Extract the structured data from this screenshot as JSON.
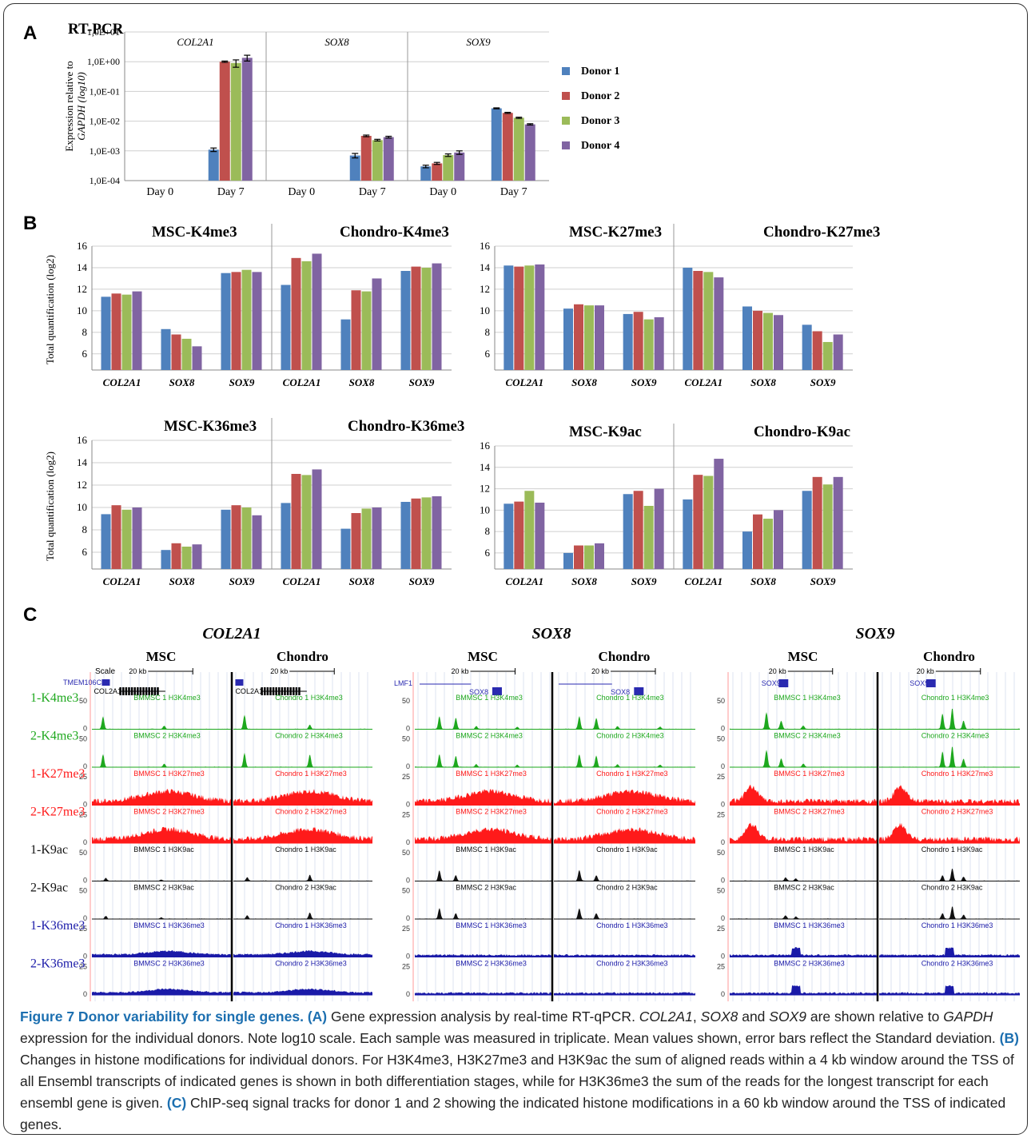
{
  "figure": {
    "panel_labels": [
      "A",
      "B",
      "C"
    ],
    "caption": {
      "title": "Figure 7 Donor variability for single genes.",
      "segments": [
        {
          "t": "(A)",
          "s": "label"
        },
        {
          "t": " Gene expression analysis by real-time RT-qPCR. "
        },
        {
          "t": "COL2A1",
          "s": "i"
        },
        {
          "t": ", "
        },
        {
          "t": "SOX8",
          "s": "i"
        },
        {
          "t": " and "
        },
        {
          "t": "SOX9",
          "s": "i"
        },
        {
          "t": " are shown relative to "
        },
        {
          "t": "GAPDH",
          "s": "i"
        },
        {
          "t": " expression for the individual donors. Note log10 scale. Each sample was measured in triplicate. Mean values shown, error bars reflect the Standard deviation. "
        },
        {
          "t": "(B)",
          "s": "label"
        },
        {
          "t": " Changes in histone modifications for individual donors. For H3K4me3, H3K27me3 and H3K9ac the sum of aligned reads within a 4 kb window around the TSS of all Ensembl transcripts of indicated genes is shown in both differentiation stages, while for H3K36me3 the sum of the reads for the longest transcript for each ensembl gene is given. "
        },
        {
          "t": "(C)",
          "s": "label"
        },
        {
          "t": " ChIP-seq signal tracks for donor 1 and 2 showing the indicated histone modifications in a 60 kb window around the TSS of indicated genes."
        }
      ]
    }
  },
  "colors": {
    "donor1": "#4f81bd",
    "donor2": "#c0504d",
    "donor3": "#9bbb59",
    "donor4": "#8064a2",
    "k4me3": "#1ea81e",
    "k27me3": "#ff1a1a",
    "k9ac": "#111111",
    "k36me3": "#1a1aa8",
    "caption_accent": "#1c6fb0"
  },
  "chart_data": [
    {
      "panel": "A",
      "type": "bar",
      "title": "RT-PCR",
      "ylabel": [
        "Expression relative to",
        "GAPDH (log10)"
      ],
      "y_scale": "log10",
      "ylim": [
        0.0001,
        10
      ],
      "y_ticks": [
        "1,0E-04",
        "1,0E-03",
        "1,0E-02",
        "1,0E-01",
        "1,0E+00",
        "1,0E+01"
      ],
      "groups": [
        "COL2A1",
        "SOX8",
        "SOX9"
      ],
      "categories": [
        "Day 0",
        "Day 7",
        "Day 0",
        "Day 7",
        "Day 0",
        "Day 7"
      ],
      "legend": [
        "Donor 1",
        "Donor 2",
        "Donor 3",
        "Donor 4"
      ],
      "legend_position": "right",
      "series": [
        {
          "name": "Donor 1",
          "values": [
            null,
            0.0011,
            null,
            0.0007,
            0.0003,
            0.027
          ]
        },
        {
          "name": "Donor 2",
          "values": [
            null,
            1.0,
            null,
            0.0032,
            0.00038,
            0.019
          ]
        },
        {
          "name": "Donor 3",
          "values": [
            null,
            0.9,
            null,
            0.0023,
            0.00072,
            0.013
          ]
        },
        {
          "name": "Donor 4",
          "values": [
            null,
            1.35,
            null,
            0.0029,
            0.00088,
            0.0078
          ]
        }
      ],
      "error": [
        [
          null,
          0.00015,
          null,
          0.00012,
          3e-05,
          0.001
        ],
        [
          null,
          0.05,
          null,
          0.0002,
          3e-05,
          0.0008
        ],
        [
          null,
          0.25,
          null,
          0.00015,
          7e-05,
          0.0006
        ],
        [
          null,
          0.3,
          null,
          0.0002,
          0.00012,
          0.0004
        ]
      ]
    },
    {
      "panel": "B",
      "type": "bar",
      "ylabel": "Total quantification (log2)",
      "ylim": [
        4.5,
        16
      ],
      "y_ticks": [
        6,
        8,
        10,
        12,
        14,
        16
      ],
      "sections": [
        {
          "titles": [
            "MSC-K4me3",
            "Chondro-K4me3"
          ],
          "categories": [
            "COL2A1",
            "SOX8",
            "SOX9",
            "COL2A1",
            "SOX8",
            "SOX9"
          ],
          "values": [
            [
              11.3,
              11.6,
              11.5,
              11.8
            ],
            [
              8.3,
              7.8,
              7.4,
              6.7
            ],
            [
              13.5,
              13.6,
              13.8,
              13.6
            ],
            [
              12.4,
              14.9,
              14.6,
              15.3
            ],
            [
              9.2,
              11.9,
              11.8,
              13.0
            ],
            [
              13.7,
              14.1,
              14.0,
              14.4
            ]
          ]
        },
        {
          "titles": [
            "MSC-K27me3",
            "Chondro-K27me3"
          ],
          "categories": [
            "COL2A1",
            "SOX8",
            "SOX9",
            "COL2A1",
            "SOX8",
            "SOX9"
          ],
          "values": [
            [
              14.2,
              14.1,
              14.2,
              14.3
            ],
            [
              10.2,
              10.6,
              10.5,
              10.5
            ],
            [
              9.7,
              9.9,
              9.2,
              9.4
            ],
            [
              14.0,
              13.7,
              13.6,
              13.1
            ],
            [
              10.4,
              10.0,
              9.8,
              9.6
            ],
            [
              8.7,
              8.1,
              7.1,
              7.8
            ]
          ]
        },
        {
          "titles": [
            "MSC-K36me3",
            "Chondro-K36me3"
          ],
          "categories": [
            "COL2A1",
            "SOX8",
            "SOX9",
            "COL2A1",
            "SOX8",
            "SOX9"
          ],
          "values": [
            [
              9.4,
              10.2,
              9.8,
              10.0
            ],
            [
              6.2,
              6.8,
              6.5,
              6.7
            ],
            [
              9.8,
              10.2,
              10.0,
              9.3
            ],
            [
              10.4,
              13.0,
              12.9,
              13.4
            ],
            [
              8.1,
              9.5,
              9.9,
              10.0
            ],
            [
              10.5,
              10.8,
              10.9,
              11.0
            ]
          ]
        },
        {
          "titles": [
            "MSC-K9ac",
            "Chondro-K9ac"
          ],
          "categories": [
            "COL2A1",
            "SOX8",
            "SOX9",
            "COL2A1",
            "SOX8",
            "SOX9"
          ],
          "values": [
            [
              10.6,
              10.8,
              11.8,
              10.7
            ],
            [
              6.0,
              6.7,
              6.7,
              6.9
            ],
            [
              11.5,
              11.8,
              10.4,
              12.0
            ],
            [
              11.0,
              13.3,
              13.2,
              14.8
            ],
            [
              8.0,
              9.6,
              9.2,
              10.0
            ],
            [
              11.8,
              13.1,
              12.4,
              13.1
            ]
          ]
        }
      ],
      "legend": [
        "Donor 1",
        "Donor 2",
        "Donor 3",
        "Donor 4"
      ]
    },
    {
      "panel": "C",
      "type": "area",
      "genes": [
        {
          "name": "COL2A1",
          "columns": [
            "MSC",
            "Chondro"
          ],
          "scale_label": "Scale",
          "kb_label": "20 kb",
          "gene_labels": [
            "TMEM106C",
            "COL2A1"
          ],
          "track_prefix": [
            "BMMSC",
            "Chondro"
          ]
        },
        {
          "name": "SOX8",
          "columns": [
            "MSC",
            "Chondro"
          ],
          "kb_label": "20 kb",
          "gene_labels": [
            "LMF1",
            "SOX8"
          ],
          "track_prefix": [
            "BMMSC",
            "Chondro"
          ]
        },
        {
          "name": "SOX9",
          "columns": [
            "MSC",
            "Chondro"
          ],
          "kb_label": "20 kb",
          "gene_labels": [
            "SOX9"
          ],
          "track_prefix": [
            "BMMSC",
            "Chondro"
          ]
        }
      ],
      "tracks": [
        {
          "label": "1-K4me3",
          "mark": "H3K4me3",
          "donor": 1,
          "ymax": 50
        },
        {
          "label": "2-K4me3",
          "mark": "H3K4me3",
          "donor": 2,
          "ymax": 50
        },
        {
          "label": "1-K27me3",
          "mark": "H3K27me3",
          "donor": 1,
          "ymax": 25
        },
        {
          "label": "2-K27me3",
          "mark": "H3K27me3",
          "donor": 2,
          "ymax": 25
        },
        {
          "label": "1-K9ac",
          "mark": "H3K9ac",
          "donor": 1,
          "ymax": 50
        },
        {
          "label": "2-K9ac",
          "mark": "H3K9ac",
          "donor": 2,
          "ymax": 50
        },
        {
          "label": "1-K36me3",
          "mark": "H3K36me3",
          "donor": 1,
          "ymax": 25
        },
        {
          "label": "2-K36me3",
          "mark": "H3K36me3",
          "donor": 2,
          "ymax": 25
        }
      ]
    }
  ]
}
